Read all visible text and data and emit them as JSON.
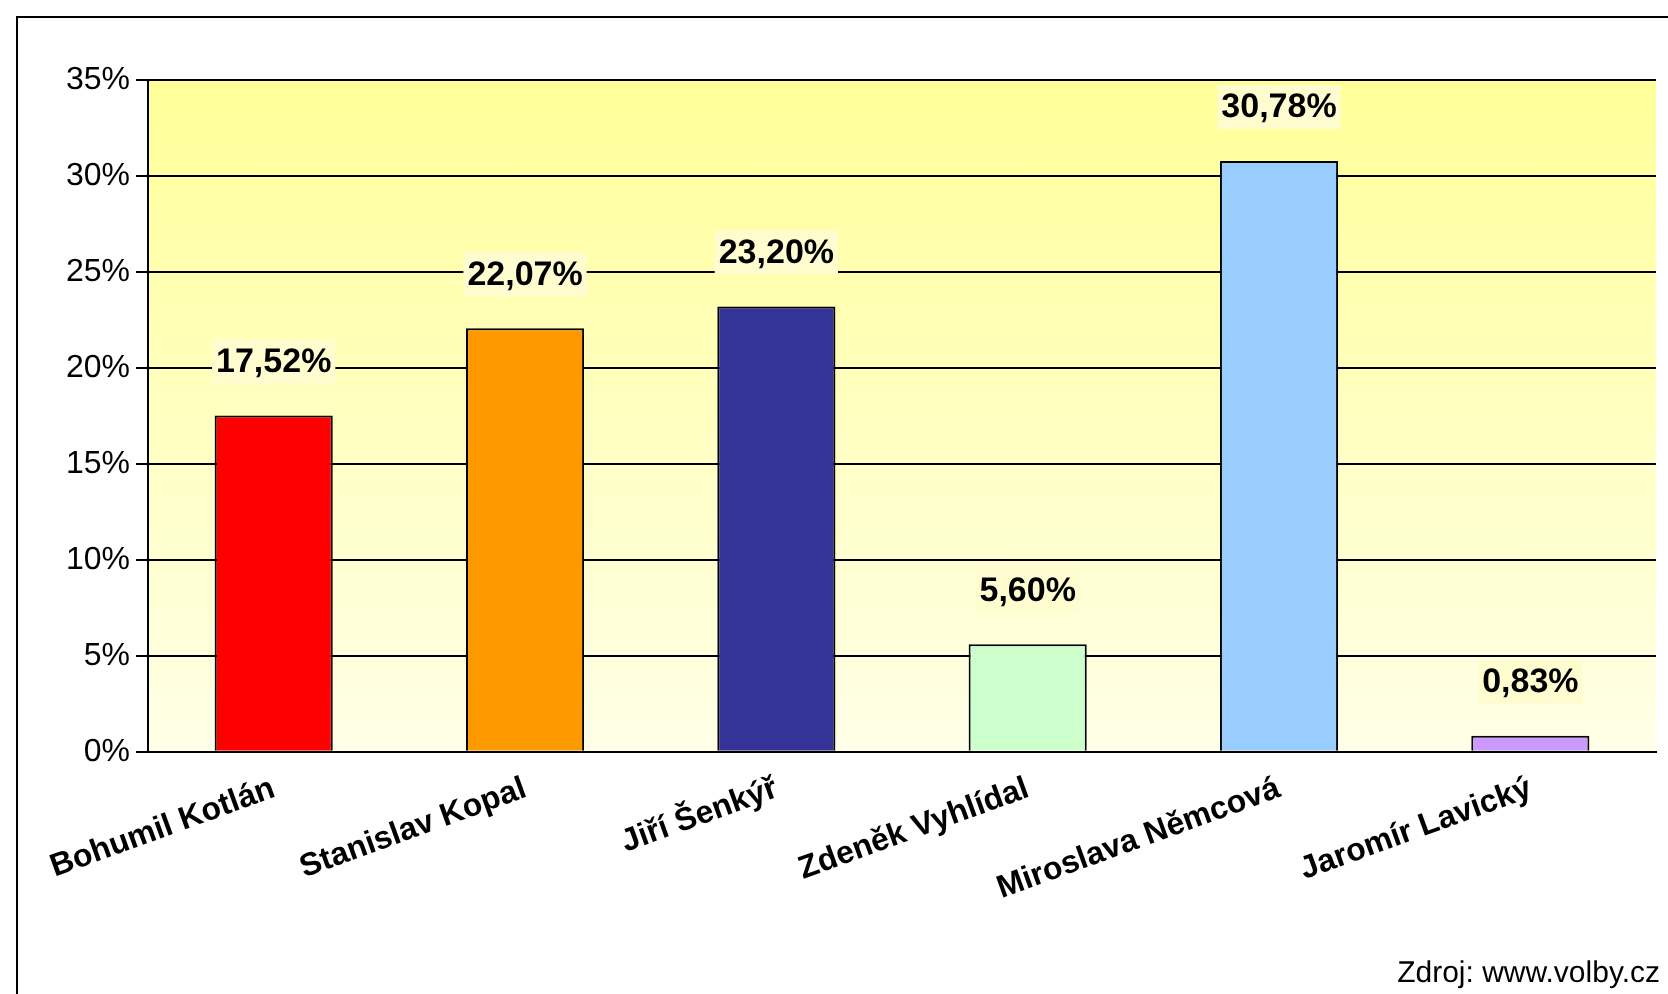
{
  "chart_data": {
    "type": "bar",
    "categories": [
      "Bohumil Kotlán",
      "Stanislav Kopal",
      "Jiří Šenkýř",
      "Zdeněk Vyhlídal",
      "Miroslava Němcová",
      "Jaromír Lavický"
    ],
    "values": [
      17.52,
      22.07,
      23.2,
      5.6,
      30.78,
      0.83
    ],
    "colors": [
      "#ff0000",
      "#ff9900",
      "#333399",
      "#ccffcc",
      "#99ccff",
      "#cc99ff"
    ],
    "value_labels": [
      "17,52%",
      "22,07%",
      "23,20%",
      "5,60%",
      "30,78%",
      "0,83%"
    ],
    "ylim": [
      0,
      35
    ],
    "yticks": [
      {
        "value": 0,
        "label": "0%"
      },
      {
        "value": 5,
        "label": "5%"
      },
      {
        "value": 10,
        "label": "10%"
      },
      {
        "value": 15,
        "label": "15%"
      },
      {
        "value": 20,
        "label": "20%"
      },
      {
        "value": 25,
        "label": "25%"
      },
      {
        "value": 30,
        "label": "30%"
      },
      {
        "value": 35,
        "label": "35%"
      }
    ],
    "grid": "y",
    "legend": false,
    "annotations": [
      "Zdroj: www.volby.cz"
    ]
  }
}
